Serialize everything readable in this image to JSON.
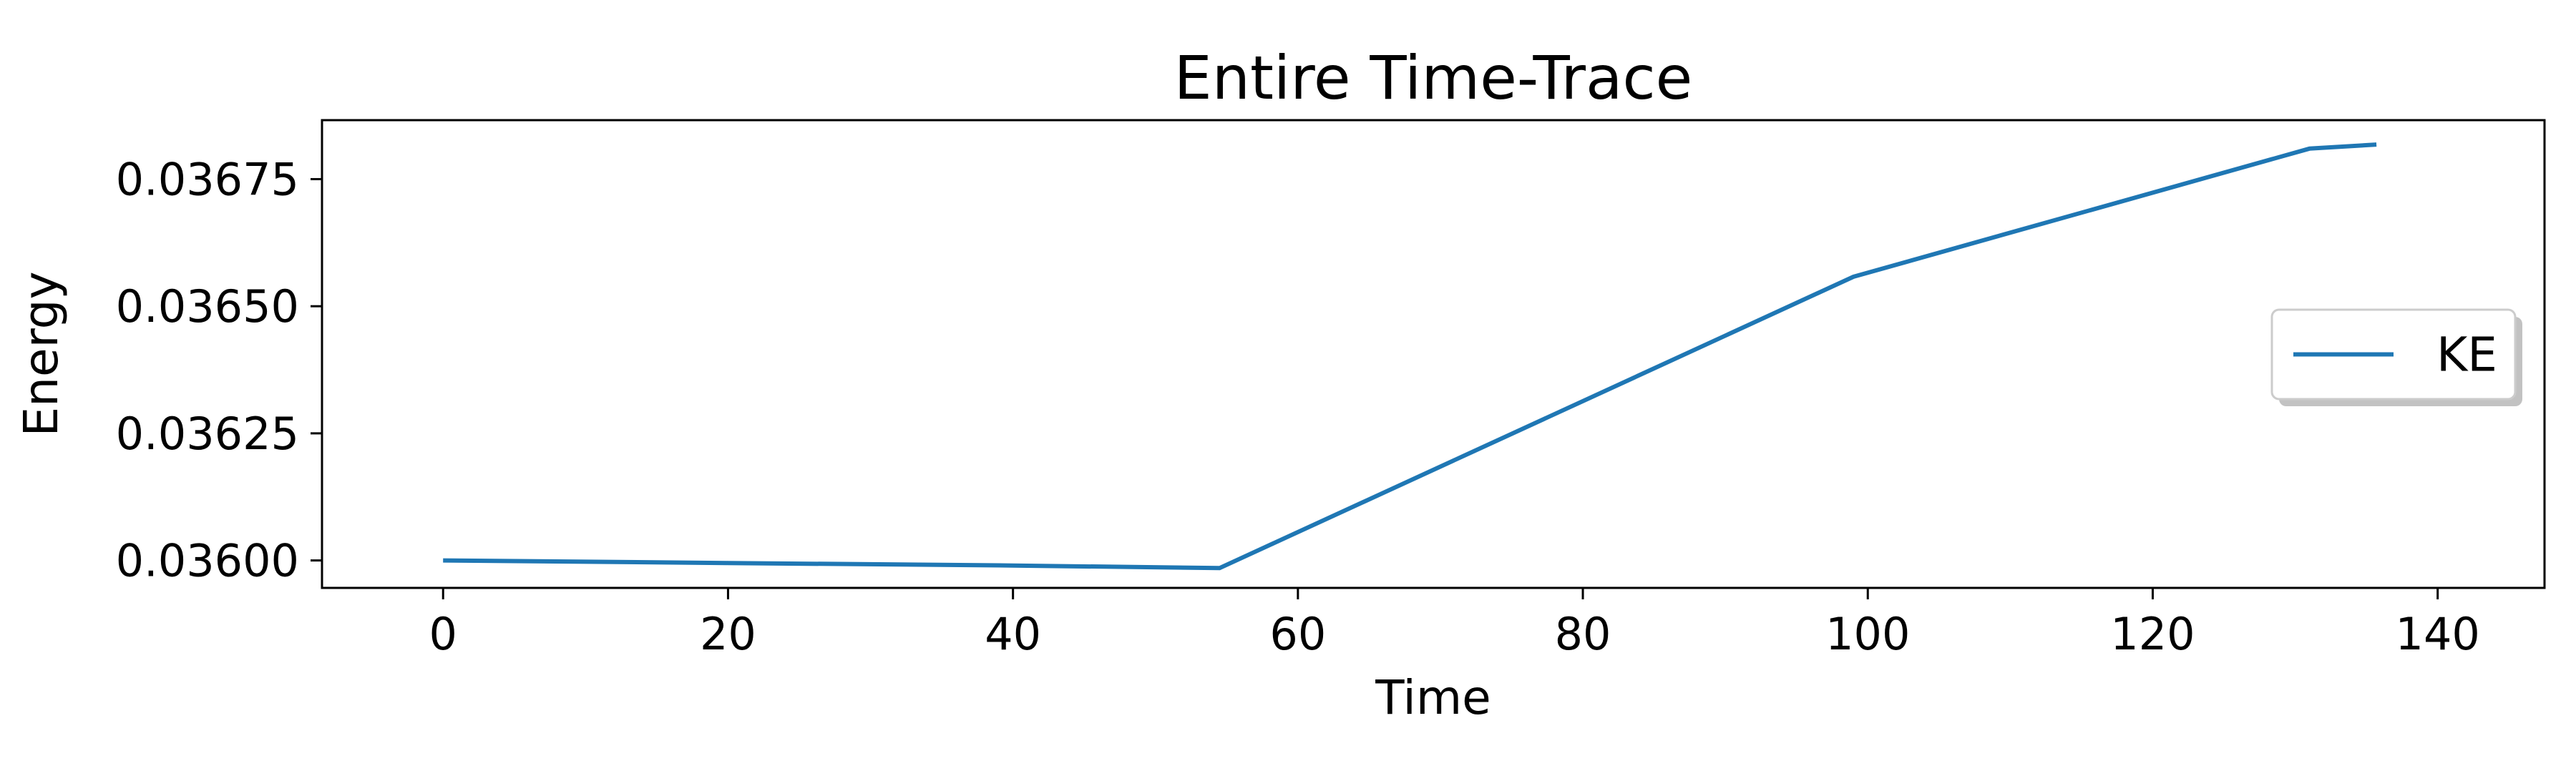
{
  "chart_data": {
    "type": "line",
    "title": "Entire Time-Trace",
    "xlabel": "Time",
    "ylabel": "Energy",
    "xlim": [
      -8.5,
      147.5
    ],
    "ylim": [
      0.035946,
      0.036866
    ],
    "xticks": [
      0,
      20,
      40,
      60,
      80,
      100,
      120,
      140
    ],
    "yticks": [
      0.036,
      0.03625,
      0.0365,
      0.03675
    ],
    "xtick_labels": [
      "0",
      "20",
      "40",
      "60",
      "80",
      "100",
      "120",
      "140"
    ],
    "ytick_labels": [
      "0.03600",
      "0.03625",
      "0.03650",
      "0.03675"
    ],
    "grid": false,
    "legend_position": "center-right",
    "series": [
      {
        "name": "KE",
        "color": "#1f77b4",
        "x": [
          0,
          20,
          40,
          54.5,
          99,
          131,
          135.7
        ],
        "y": [
          0.036,
          0.035995,
          0.03599,
          0.035985,
          0.036558,
          0.03681,
          0.036818
        ]
      }
    ]
  }
}
